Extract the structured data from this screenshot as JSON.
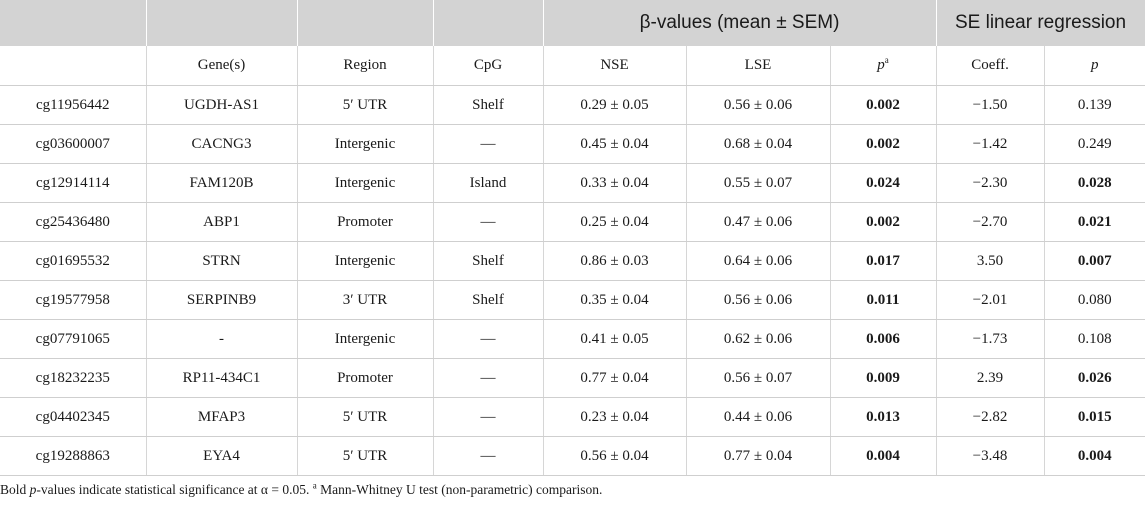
{
  "header": {
    "group_beta": "β-values (mean ± SEM)",
    "group_se": "SE linear regression",
    "columns": [
      "",
      "Gene(s)",
      "Region",
      "CpG",
      "NSE",
      "LSE",
      "p",
      "Coeff.",
      "p"
    ],
    "p_sup": "a"
  },
  "rows": [
    {
      "id": "cg11956442",
      "gene": "UGDH-AS1",
      "region": "5′ UTR",
      "cpg": "Shelf",
      "nse": "0.29 ± 0.05",
      "lse": "0.56 ± 0.06",
      "p": "0.002",
      "coeff": "−1.50",
      "p2": "0.139"
    },
    {
      "id": "cg03600007",
      "gene": "CACNG3",
      "region": "Intergenic",
      "cpg": "—",
      "nse": "0.45 ± 0.04",
      "lse": "0.68 ± 0.04",
      "p": "0.002",
      "coeff": "−1.42",
      "p2": "0.249"
    },
    {
      "id": "cg12914114",
      "gene": "FAM120B",
      "region": "Intergenic",
      "cpg": "Island",
      "nse": "0.33 ± 0.04",
      "lse": "0.55 ± 0.07",
      "p": "0.024",
      "coeff": "−2.30",
      "p2": "0.028"
    },
    {
      "id": "cg25436480",
      "gene": "ABP1",
      "region": "Promoter",
      "cpg": "—",
      "nse": "0.25 ± 0.04",
      "lse": "0.47 ± 0.06",
      "p": "0.002",
      "coeff": "−2.70",
      "p2": "0.021"
    },
    {
      "id": "cg01695532",
      "gene": "STRN",
      "region": "Intergenic",
      "cpg": "Shelf",
      "nse": "0.86 ± 0.03",
      "lse": "0.64 ± 0.06",
      "p": "0.017",
      "coeff": "3.50",
      "p2": "0.007"
    },
    {
      "id": "cg19577958",
      "gene": "SERPINB9",
      "region": "3′ UTR",
      "cpg": "Shelf",
      "nse": "0.35 ± 0.04",
      "lse": "0.56 ± 0.06",
      "p": "0.011",
      "coeff": "−2.01",
      "p2": "0.080"
    },
    {
      "id": "cg07791065",
      "gene": "-",
      "region": "Intergenic",
      "cpg": "—",
      "nse": "0.41 ± 0.05",
      "lse": "0.62 ± 0.06",
      "p": "0.006",
      "coeff": "−1.73",
      "p2": "0.108"
    },
    {
      "id": "cg18232235",
      "gene": "RP11-434C1",
      "region": "Promoter",
      "cpg": "—",
      "nse": "0.77 ± 0.04",
      "lse": "0.56 ± 0.07",
      "p": "0.009",
      "coeff": "2.39",
      "p2": "0.026"
    },
    {
      "id": "cg04402345",
      "gene": "MFAP3",
      "region": "5′ UTR",
      "cpg": "—",
      "nse": "0.23 ± 0.04",
      "lse": "0.44 ± 0.06",
      "p": "0.013",
      "coeff": "−2.82",
      "p2": "0.015"
    },
    {
      "id": "cg19288863",
      "gene": "EYA4",
      "region": "5′ UTR",
      "cpg": "—",
      "nse": "0.56 ± 0.04",
      "lse": "0.77 ± 0.04",
      "p": "0.004",
      "coeff": "−3.48",
      "p2": "0.004"
    }
  ],
  "bold_p2": [
    false,
    false,
    true,
    true,
    true,
    false,
    false,
    true,
    true,
    true
  ],
  "footnote": {
    "part1": "Bold ",
    "p_italic": "p",
    "part2": "-values indicate statistical significance at α = 0.05. ",
    "sup": "a",
    "part3": " Mann-Whitney U test (non-parametric) comparison."
  }
}
